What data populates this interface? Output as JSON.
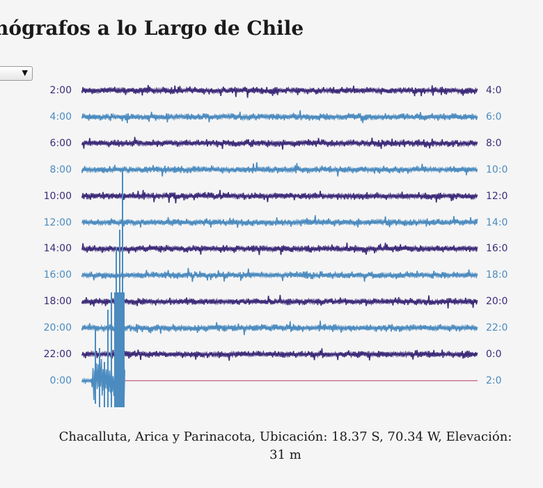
{
  "header": {
    "title": "nógrafos a lo Largo de Chile"
  },
  "station_select": {
    "arrow": "▼"
  },
  "seismogram": {
    "colors": {
      "dark": "#3c2a78",
      "light": "#4b8bbf",
      "baseline": "#b03a5a"
    },
    "left_labels": [
      "2:00",
      "4:00",
      "6:00",
      "8:00",
      "10:00",
      "12:00",
      "14:00",
      "16:00",
      "18:00",
      "20:00",
      "22:00",
      "0:00"
    ],
    "right_labels": [
      "4:0",
      "6:0",
      "8:0",
      "10:0",
      "12:0",
      "14:0",
      "16:0",
      "18:0",
      "20:0",
      "22:0",
      "0:0",
      "2:0"
    ]
  },
  "caption": {
    "line1": "Chacalluta, Arica y Parinacota, Ubicación: 18.37 S, 70.34 W, Elevación:",
    "line2": "31 m"
  }
}
